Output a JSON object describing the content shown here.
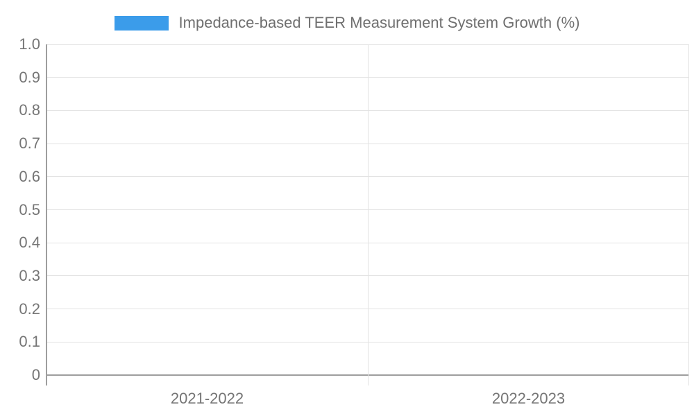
{
  "chart_data": {
    "type": "bar",
    "title": "",
    "legend": {
      "label": "Impedance-based TEER Measurement System Growth (%)",
      "color": "#3B9CEA",
      "position": "top"
    },
    "categories": [
      "2021-2022",
      "2022-2023"
    ],
    "series": [
      {
        "name": "Impedance-based TEER Measurement System Growth (%)",
        "color": "#3B9CEA",
        "values": [
          0,
          0
        ]
      }
    ],
    "xlabel": "",
    "ylabel": "",
    "ylim": [
      0,
      1.0
    ],
    "ytick_step": 0.1,
    "ytick_labels": [
      "0",
      "0.1",
      "0.2",
      "0.3",
      "0.4",
      "0.5",
      "0.6",
      "0.7",
      "0.8",
      "0.9",
      "1.0"
    ],
    "grid": true,
    "colors": {
      "grid": "#E3E3E3",
      "axis": "#9E9E9E",
      "tick_label": "#757575",
      "legend_text": "#6F6F6F",
      "background": "#FFFFFF"
    }
  }
}
